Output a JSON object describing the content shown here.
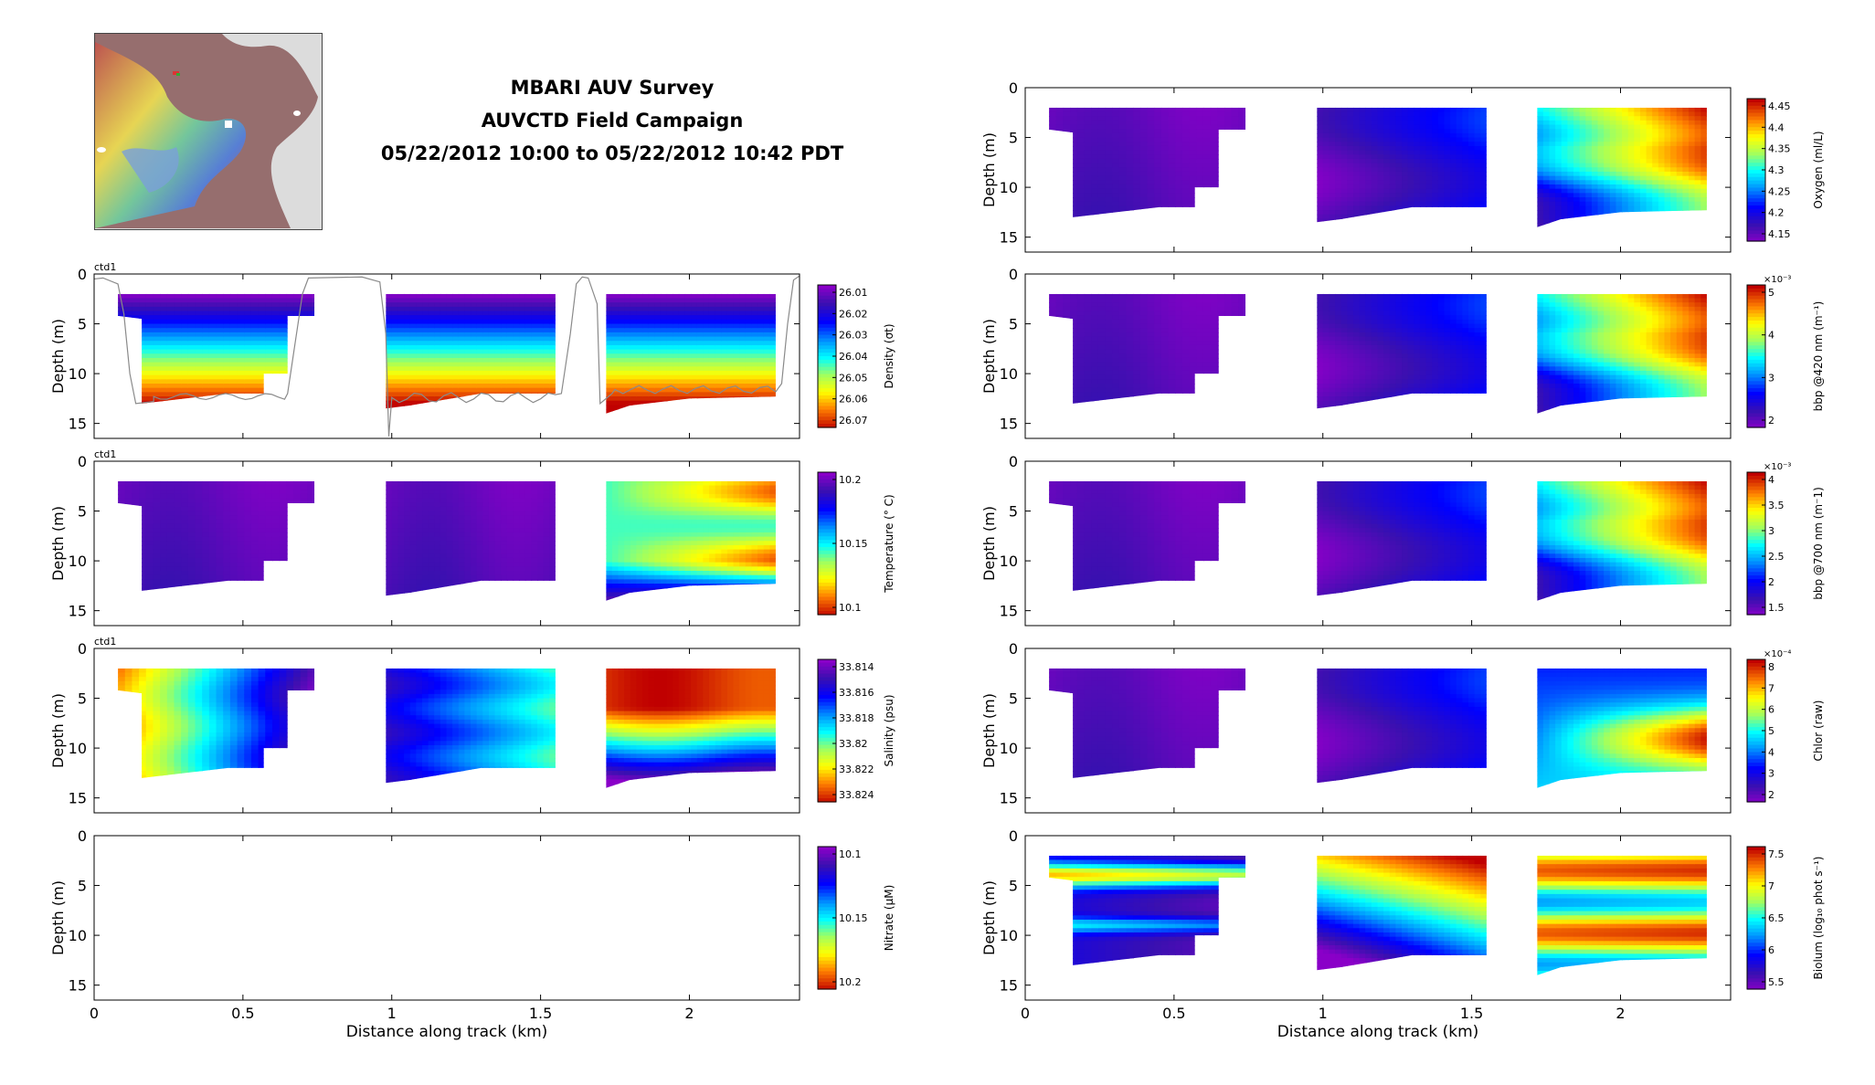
{
  "header": {
    "title_line1": "MBARI AUV Survey",
    "title_line2": "AUVCTD Field Campaign",
    "title_line3": "05/22/2012 10:00 to 05/22/2012 10:42 PDT"
  },
  "map_inset": {
    "icon": "bathymetry-map-icon"
  },
  "chart_data": [
    {
      "type": "heatmap",
      "panel": "left-1",
      "tag": "ctd1",
      "ylabel": "Depth (m)",
      "xlabel": "",
      "xlim": [
        0,
        2.37
      ],
      "ylim": [
        16,
        0
      ],
      "x_ticks": [
        "0",
        "0.5",
        "1",
        "1.5",
        "2"
      ],
      "y_ticks": [
        "0",
        "5",
        "10",
        "15"
      ],
      "colorbar_label": "Density (σt)",
      "colorbar_ticks": [
        "26.01",
        "26.02",
        "26.03",
        "26.04",
        "26.05",
        "26.06",
        "26.07"
      ],
      "colormap": "jet",
      "colorbar_reversed": true,
      "has_track": true,
      "profiles": [
        "vertical",
        "vertical",
        "vertical"
      ]
    },
    {
      "type": "heatmap",
      "panel": "left-2",
      "tag": "ctd1",
      "ylabel": "Depth (m)",
      "xlabel": "",
      "xlim": [
        0,
        2.37
      ],
      "ylim": [
        16,
        0
      ],
      "x_ticks": [
        "0",
        "0.5",
        "1",
        "1.5",
        "2"
      ],
      "y_ticks": [
        "0",
        "5",
        "10",
        "15"
      ],
      "colorbar_label": "Temperature (° C)",
      "colorbar_ticks": [
        "10.2",
        "10.15",
        "10.1"
      ],
      "colormap": "jet",
      "colorbar_reversed": true,
      "has_track": false,
      "profiles": [
        "low",
        "low",
        "layered"
      ]
    },
    {
      "type": "heatmap",
      "panel": "left-3",
      "tag": "ctd1",
      "ylabel": "Depth (m)",
      "xlabel": "",
      "xlim": [
        0,
        2.37
      ],
      "ylim": [
        16,
        0
      ],
      "x_ticks": [
        "0",
        "0.5",
        "1",
        "1.5",
        "2"
      ],
      "y_ticks": [
        "0",
        "5",
        "10",
        "15"
      ],
      "colorbar_label": "Salinity (psu)",
      "colorbar_ticks": [
        "33.814",
        "33.816",
        "33.818",
        "33.82",
        "33.822",
        "33.824"
      ],
      "colormap": "jet",
      "colorbar_reversed": true,
      "has_track": false,
      "profiles": [
        "horizontal",
        "horizontal-low",
        "salinity"
      ]
    },
    {
      "type": "heatmap",
      "panel": "left-4",
      "tag": "",
      "ylabel": "Depth (m)",
      "xlabel": "Distance along track (km)",
      "xlim": [
        0,
        2.37
      ],
      "ylim": [
        16,
        0
      ],
      "x_ticks": [
        "0",
        "0.5",
        "1",
        "1.5",
        "2"
      ],
      "y_ticks": [
        "0",
        "5",
        "10",
        "15"
      ],
      "colorbar_label": "Nitrate (μM)",
      "colorbar_ticks": [
        "10.1",
        "10.15",
        "10.2"
      ],
      "colormap": "jet",
      "colorbar_reversed": true,
      "has_track": false,
      "profiles": [
        "none",
        "none",
        "none"
      ]
    },
    {
      "type": "heatmap",
      "panel": "right-1",
      "tag": "",
      "ylabel": "Depth (m)",
      "xlabel": "",
      "xlim": [
        0,
        2.37
      ],
      "ylim": [
        16,
        0
      ],
      "x_ticks": [
        "0",
        "0.5",
        "1",
        "1.5",
        "2"
      ],
      "y_ticks": [
        "0",
        "5",
        "10",
        "15"
      ],
      "colorbar_label": "Oxygen (ml/L)",
      "colorbar_ticks": [
        "4.45",
        "4.4",
        "4.35",
        "4.3",
        "4.25",
        "4.2",
        "4.15"
      ],
      "colormap": "jet",
      "colorbar_reversed": false,
      "colorbar_exponent": "",
      "has_track": false,
      "profiles": [
        "low",
        "low-blue",
        "high"
      ]
    },
    {
      "type": "heatmap",
      "panel": "right-2",
      "tag": "",
      "ylabel": "Depth (m)",
      "xlabel": "",
      "xlim": [
        0,
        2.37
      ],
      "ylim": [
        16,
        0
      ],
      "x_ticks": [
        "0",
        "0.5",
        "1",
        "1.5",
        "2"
      ],
      "y_ticks": [
        "0",
        "5",
        "10",
        "15"
      ],
      "colorbar_label": "bbp @420 nm (m⁻¹)",
      "colorbar_ticks": [
        "5",
        "4",
        "3",
        "2"
      ],
      "colorbar_exponent": "×10⁻³",
      "colormap": "jet",
      "colorbar_reversed": false,
      "has_track": false,
      "profiles": [
        "low",
        "low-blue",
        "high"
      ]
    },
    {
      "type": "heatmap",
      "panel": "right-3",
      "tag": "",
      "ylabel": "Depth (m)",
      "xlabel": "",
      "xlim": [
        0,
        2.37
      ],
      "ylim": [
        16,
        0
      ],
      "x_ticks": [
        "0",
        "0.5",
        "1",
        "1.5",
        "2"
      ],
      "y_ticks": [
        "0",
        "5",
        "10",
        "15"
      ],
      "colorbar_label": "bbp @700 nm (m⁻1)",
      "colorbar_ticks": [
        "4",
        "3.5",
        "3",
        "2.5",
        "2",
        "1.5"
      ],
      "colorbar_exponent": "×10⁻³",
      "colormap": "jet",
      "colorbar_reversed": false,
      "has_track": false,
      "profiles": [
        "low",
        "low-blue",
        "high"
      ]
    },
    {
      "type": "heatmap",
      "panel": "right-4",
      "tag": "",
      "ylabel": "Depth (m)",
      "xlabel": "",
      "xlim": [
        0,
        2.37
      ],
      "ylim": [
        16,
        0
      ],
      "x_ticks": [
        "0",
        "0.5",
        "1",
        "1.5",
        "2"
      ],
      "y_ticks": [
        "0",
        "5",
        "10",
        "15"
      ],
      "colorbar_label": "Chlor (raw)",
      "colorbar_ticks": [
        "8",
        "7",
        "6",
        "5",
        "4",
        "3",
        "2"
      ],
      "colorbar_exponent": "×10⁻⁴",
      "colormap": "jet",
      "colorbar_reversed": false,
      "has_track": false,
      "profiles": [
        "low",
        "low-blue",
        "chlor"
      ]
    },
    {
      "type": "heatmap",
      "panel": "right-5",
      "tag": "",
      "ylabel": "Depth (m)",
      "xlabel": "Distance along track (km)",
      "xlim": [
        0,
        2.37
      ],
      "ylim": [
        16,
        0
      ],
      "x_ticks": [
        "0",
        "0.5",
        "1",
        "1.5",
        "2"
      ],
      "y_ticks": [
        "0",
        "5",
        "10",
        "15"
      ],
      "colorbar_label": "Biolum (log₁₀ phot s⁻¹)",
      "colorbar_ticks": [
        "7.5",
        "7",
        "6.5",
        "6",
        "5.5"
      ],
      "colorbar_exponent": "",
      "colormap": "jet",
      "colorbar_reversed": false,
      "has_track": false,
      "profiles": [
        "biolum1",
        "biolum2",
        "biolum3"
      ]
    }
  ]
}
